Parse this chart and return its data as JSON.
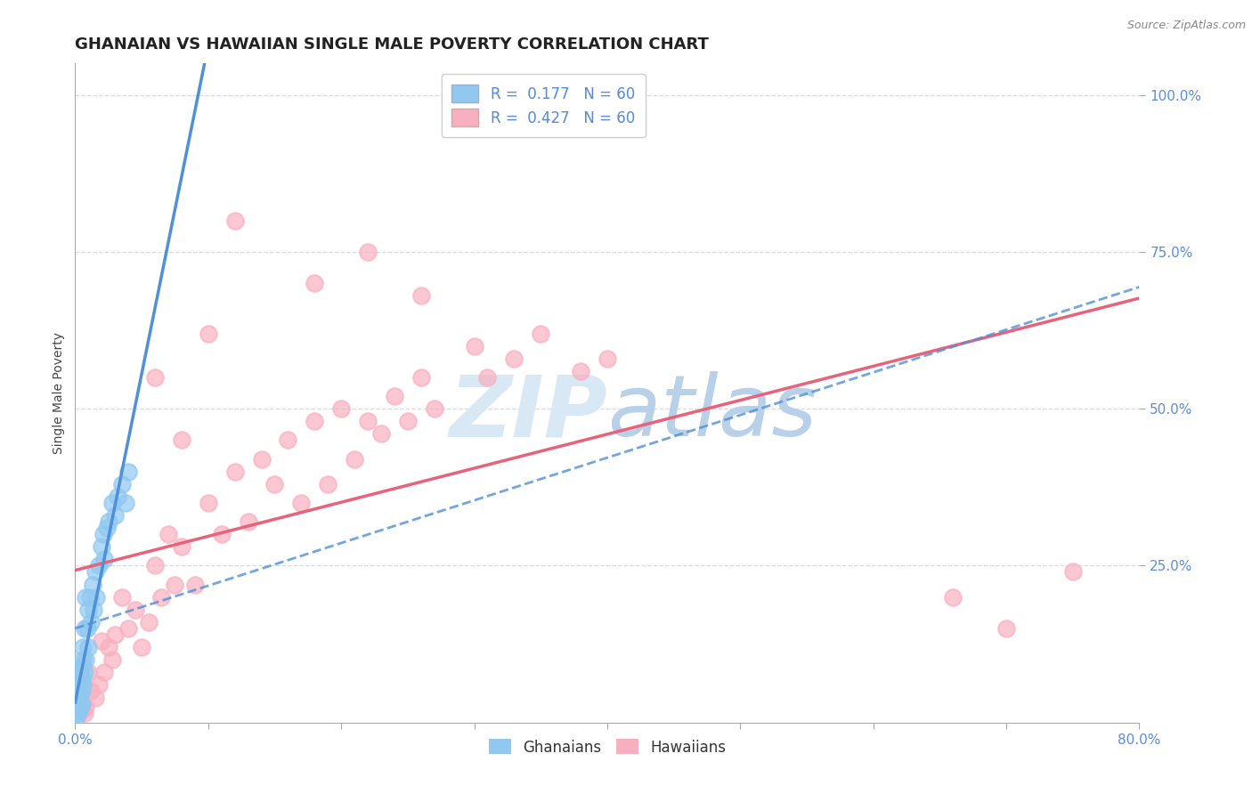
{
  "title": "GHANAIAN VS HAWAIIAN SINGLE MALE POVERTY CORRELATION CHART",
  "source": "Source: ZipAtlas.com",
  "ylabel": "Single Male Poverty",
  "xlim": [
    0.0,
    0.8
  ],
  "ylim": [
    0.0,
    1.05
  ],
  "yticks": [
    0.25,
    0.5,
    0.75,
    1.0
  ],
  "ytick_labels": [
    "25.0%",
    "50.0%",
    "75.0%",
    "100.0%"
  ],
  "xtick_labels_left": "0.0%",
  "xtick_labels_right": "80.0%",
  "ghanaian_R": 0.177,
  "ghanaian_N": 60,
  "hawaiian_R": 0.427,
  "hawaiian_N": 60,
  "ghanaian_color": "#90C8F0",
  "hawaiian_color": "#F8B0C0",
  "ghanaian_line_color": "#5090D8",
  "hawaiian_line_color": "#E8637A",
  "tick_color": "#5B8DD9",
  "grid_color": "#CCDDEE",
  "background_color": "#FFFFFF",
  "watermark_color": "#D8E8F5",
  "title_fontsize": 13,
  "axis_label_fontsize": 10,
  "tick_fontsize": 11,
  "legend_fontsize": 12,
  "ghanaian_x": [
    0.001,
    0.001,
    0.001,
    0.001,
    0.001,
    0.001,
    0.001,
    0.001,
    0.001,
    0.001,
    0.002,
    0.002,
    0.002,
    0.002,
    0.002,
    0.002,
    0.002,
    0.002,
    0.002,
    0.003,
    0.003,
    0.003,
    0.003,
    0.003,
    0.004,
    0.004,
    0.004,
    0.004,
    0.005,
    0.005,
    0.005,
    0.005,
    0.006,
    0.006,
    0.006,
    0.007,
    0.007,
    0.008,
    0.008,
    0.009,
    0.01,
    0.01,
    0.011,
    0.012,
    0.013,
    0.014,
    0.015,
    0.016,
    0.018,
    0.02,
    0.021,
    0.022,
    0.024,
    0.025,
    0.028,
    0.03,
    0.032,
    0.035,
    0.038,
    0.04
  ],
  "ghanaian_y": [
    0.02,
    0.025,
    0.03,
    0.035,
    0.04,
    0.045,
    0.05,
    0.055,
    0.06,
    0.01,
    0.015,
    0.025,
    0.035,
    0.045,
    0.055,
    0.065,
    0.07,
    0.075,
    0.08,
    0.02,
    0.03,
    0.05,
    0.06,
    0.08,
    0.025,
    0.045,
    0.065,
    0.085,
    0.03,
    0.05,
    0.07,
    0.09,
    0.06,
    0.1,
    0.12,
    0.08,
    0.15,
    0.1,
    0.2,
    0.15,
    0.12,
    0.18,
    0.2,
    0.16,
    0.22,
    0.18,
    0.24,
    0.2,
    0.25,
    0.28,
    0.3,
    0.26,
    0.31,
    0.32,
    0.35,
    0.33,
    0.36,
    0.38,
    0.35,
    0.4
  ],
  "hawaiian_x": [
    0.001,
    0.002,
    0.003,
    0.005,
    0.007,
    0.008,
    0.01,
    0.012,
    0.015,
    0.018,
    0.02,
    0.022,
    0.025,
    0.028,
    0.03,
    0.035,
    0.04,
    0.045,
    0.05,
    0.055,
    0.06,
    0.065,
    0.07,
    0.075,
    0.08,
    0.09,
    0.1,
    0.11,
    0.12,
    0.13,
    0.14,
    0.15,
    0.16,
    0.17,
    0.18,
    0.19,
    0.2,
    0.21,
    0.22,
    0.23,
    0.24,
    0.25,
    0.26,
    0.27,
    0.3,
    0.31,
    0.33,
    0.35,
    0.38,
    0.4,
    0.06,
    0.08,
    0.1,
    0.12,
    0.18,
    0.22,
    0.26,
    0.66,
    0.7,
    0.75
  ],
  "hawaiian_y": [
    0.05,
    0.06,
    0.03,
    0.02,
    0.015,
    0.025,
    0.08,
    0.05,
    0.04,
    0.06,
    0.13,
    0.08,
    0.12,
    0.1,
    0.14,
    0.2,
    0.15,
    0.18,
    0.12,
    0.16,
    0.25,
    0.2,
    0.3,
    0.22,
    0.28,
    0.22,
    0.35,
    0.3,
    0.4,
    0.32,
    0.42,
    0.38,
    0.45,
    0.35,
    0.48,
    0.38,
    0.5,
    0.42,
    0.48,
    0.46,
    0.52,
    0.48,
    0.55,
    0.5,
    0.6,
    0.55,
    0.58,
    0.62,
    0.56,
    0.58,
    0.55,
    0.45,
    0.62,
    0.8,
    0.7,
    0.75,
    0.68,
    0.2,
    0.15,
    0.24
  ],
  "hawaiian_line_intercept": 0.05,
  "hawaiian_line_slope": 0.75,
  "ghanaian_line_intercept": 0.02,
  "ghanaian_line_slope": 8.0,
  "dashed_line_intercept": 0.05,
  "dashed_line_slope": 0.85
}
